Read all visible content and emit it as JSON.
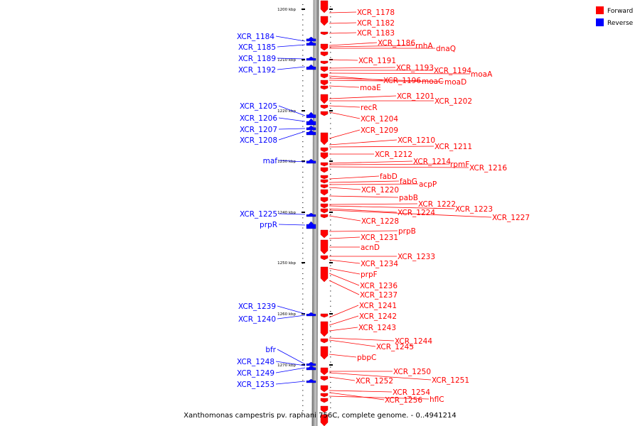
{
  "caption": "Xanthomonas campestris pv. raphani 756C, complete genome. - 0..4941214",
  "colors": {
    "forward": "#ff0000",
    "reverse": "#0000ff",
    "backbone": "#999999"
  },
  "legend": [
    {
      "label": "Forward",
      "color": "#ff0000"
    },
    {
      "label": "Reverse",
      "color": "#0000ff"
    }
  ],
  "scale": {
    "ticks": [
      "1200 kbp",
      "1210 kbp",
      "1220 kbp",
      "1230 kbp",
      "1240 kbp",
      "1250 kbp",
      "1260 kbp",
      "1270 kbp"
    ]
  },
  "forward_genes": [
    "XCR_1178",
    "XCR_1182",
    "XCR_1183",
    "XCR_1186",
    "rnhA",
    "dnaQ",
    "XCR_1191",
    "XCR_1193",
    "XCR_1194",
    "moaA",
    "XCR_1196",
    "moaC",
    "moaD",
    "moaE",
    "XCR_1201",
    "XCR_1202",
    "recR",
    "XCR_1204",
    "XCR_1209",
    "XCR_1210",
    "XCR_1211",
    "XCR_1212",
    "XCR_1214",
    "rpmF",
    "XCR_1216",
    "fabD",
    "fabG",
    "acpP",
    "XCR_1220",
    "pabB",
    "XCR_1222",
    "XCR_1223",
    "XCR_1224",
    "XCR_1227",
    "XCR_1228",
    "prpB",
    "XCR_1231",
    "acnD",
    "XCR_1233",
    "XCR_1234",
    "prpF",
    "XCR_1236",
    "XCR_1237",
    "XCR_1241",
    "XCR_1242",
    "XCR_1243",
    "XCR_1244",
    "XCR_1245",
    "pbpC",
    "XCR_1250",
    "XCR_1251",
    "XCR_1252",
    "XCR_1254",
    "XCR_1256",
    "hflC"
  ],
  "reverse_genes": [
    "XCR_1184",
    "XCR_1185",
    "XCR_1189",
    "XCR_1192",
    "XCR_1205",
    "XCR_1206",
    "XCR_1207",
    "XCR_1208",
    "maf",
    "XCR_1225",
    "prpR",
    "XCR_1239",
    "XCR_1240",
    "bfr",
    "XCR_1248",
    "XCR_1249",
    "XCR_1253"
  ]
}
